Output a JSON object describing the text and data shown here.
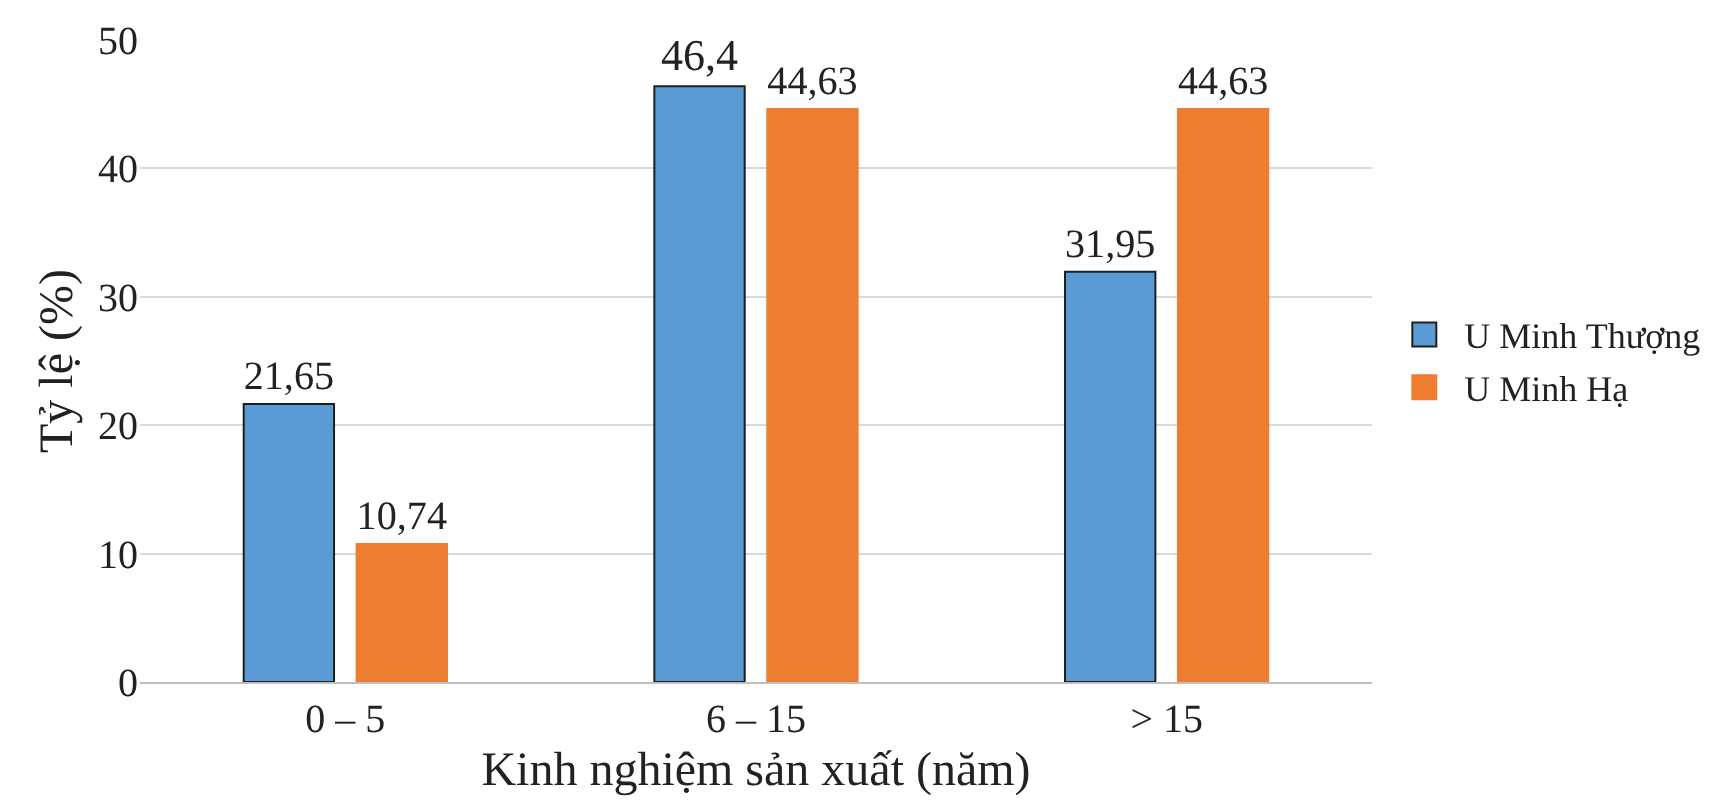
{
  "chart_data": {
    "type": "bar",
    "xlabel": "Kinh nghiệm sản xuất (năm)",
    "ylabel": "Tỷ lệ (%)",
    "categories": [
      "0 – 5",
      "6 – 15",
      "> 15"
    ],
    "series": [
      {
        "name": "U Minh Thượng",
        "color": "#5b9bd5",
        "values": [
          21.65,
          46.4,
          31.95
        ],
        "value_labels": [
          "21,65",
          "46,4",
          "31,95"
        ]
      },
      {
        "name": "U Minh Hạ",
        "color": "#ed7d31",
        "values": [
          10.74,
          44.63,
          44.63
        ],
        "value_labels": [
          "10,74",
          "44,63",
          "44,63"
        ]
      }
    ],
    "ylim": [
      0,
      50
    ],
    "yticks": [
      0,
      10,
      20,
      30,
      40,
      50
    ],
    "grid": "y",
    "legend": "right"
  }
}
